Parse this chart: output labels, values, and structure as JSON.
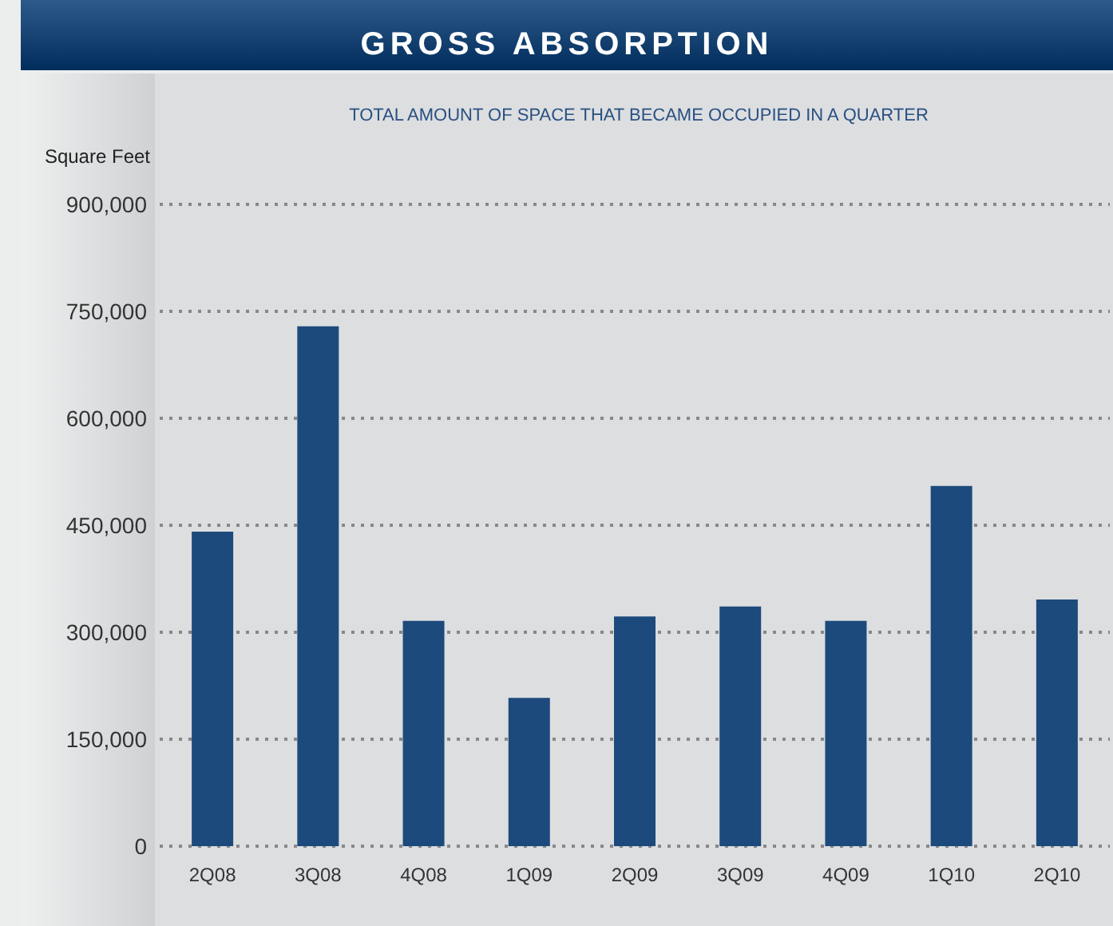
{
  "chart_data": {
    "type": "bar",
    "title": "GROSS ABSORPTION",
    "subtitle": "TOTAL AMOUNT OF SPACE THAT BECAME OCCUPIED IN A QUARTER",
    "ylabel": "Square Feet",
    "categories": [
      "2Q08",
      "3Q08",
      "4Q08",
      "1Q09",
      "2Q09",
      "3Q09",
      "4Q09",
      "1Q10",
      "2Q10"
    ],
    "values": [
      441000,
      729000,
      316000,
      208000,
      322000,
      336000,
      316000,
      505000,
      346000
    ],
    "color": "#1d4a7c",
    "ylim": [
      0,
      900000
    ],
    "yticks": [
      0,
      {
        "value": 150000,
        "label": "150,000"
      },
      {
        "value": 300000,
        "label": "300,000"
      },
      {
        "value": 450000,
        "label": "450,000"
      },
      {
        "value": 600000,
        "label": "600,000"
      },
      {
        "value": 750000,
        "label": "750,000"
      },
      {
        "value": 900000,
        "label": "900,000"
      }
    ],
    "grid": "y"
  }
}
